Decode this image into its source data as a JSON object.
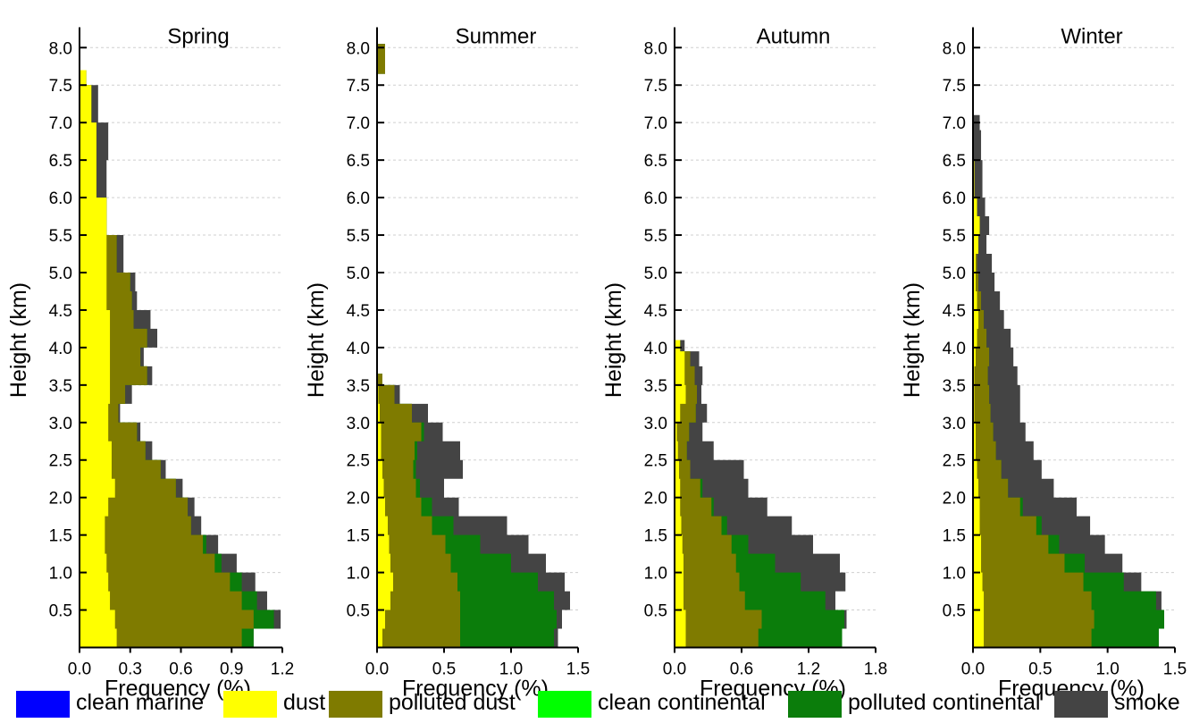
{
  "colors": {
    "clean_marine": "#0000ff",
    "dust": "#ffff00",
    "polluted_dust": "#7f7b00",
    "clean_continental": "#00ff00",
    "polluted_continental": "#0b7d0b",
    "smoke": "#444444",
    "grid": "#cfcfcf"
  },
  "legend": [
    {
      "key": "clean_marine",
      "label": "clean marine"
    },
    {
      "key": "dust",
      "label": "dust"
    },
    {
      "key": "polluted_dust",
      "label": "polluted dust"
    },
    {
      "key": "clean_continental",
      "label": "clean continental"
    },
    {
      "key": "polluted_continental",
      "label": "polluted continental"
    },
    {
      "key": "smoke",
      "label": "smoke"
    }
  ],
  "chart_data": [
    {
      "type": "area",
      "title": "Spring",
      "xlabel": "Frequency (%)",
      "ylabel": "Height (km)",
      "xlim": [
        0,
        1.2
      ],
      "ylim": [
        0,
        8.2
      ],
      "xticks": [
        "0.0",
        "0.3",
        "0.6",
        "0.9",
        "1.2"
      ],
      "yticks": [
        "0.5",
        "1.0",
        "1.5",
        "2.0",
        "2.5",
        "3.0",
        "3.5",
        "4.0",
        "4.5",
        "5.0",
        "5.5",
        "6.0",
        "6.5",
        "7.0",
        "7.5",
        "8.0"
      ],
      "grid": true,
      "stacking": "cumulative",
      "heights": [
        0.0,
        0.25,
        0.5,
        0.75,
        1.0,
        1.25,
        1.5,
        1.75,
        2.0,
        2.25,
        2.5,
        2.75,
        3.0,
        3.25,
        3.5,
        3.75,
        4.0,
        4.25,
        4.5,
        4.75,
        5.0,
        5.5,
        6.0,
        6.5,
        7.0,
        7.5
      ],
      "series": [
        {
          "key": "dust",
          "values": [
            0.22,
            0.21,
            0.18,
            0.17,
            0.16,
            0.15,
            0.15,
            0.17,
            0.21,
            0.19,
            0.19,
            0.17,
            0.17,
            0.18,
            0.18,
            0.18,
            0.18,
            0.18,
            0.16,
            0.16,
            0.16,
            0.16,
            0.1,
            0.1,
            0.07,
            0.04
          ]
        },
        {
          "key": "polluted_dust",
          "values": [
            0.74,
            0.82,
            0.78,
            0.72,
            0.64,
            0.58,
            0.51,
            0.47,
            0.36,
            0.29,
            0.2,
            0.17,
            0.06,
            0.09,
            0.22,
            0.18,
            0.22,
            0.14,
            0.15,
            0.14,
            0.06,
            0.0,
            0.0,
            0.0,
            0.0,
            0.0
          ]
        },
        {
          "key": "polluted_continental",
          "values": [
            0.07,
            0.12,
            0.09,
            0.07,
            0.04,
            0.02,
            0.0,
            0.0,
            0.0,
            0.0,
            0.0,
            0.0,
            0.0,
            0.0,
            0.0,
            0.0,
            0.0,
            0.0,
            0.0,
            0.0,
            0.0,
            0.0,
            0.0,
            0.0,
            0.0,
            0.0
          ]
        },
        {
          "key": "smoke",
          "values": [
            0.0,
            0.04,
            0.06,
            0.08,
            0.09,
            0.07,
            0.06,
            0.04,
            0.04,
            0.03,
            0.04,
            0.02,
            0.01,
            0.04,
            0.03,
            0.02,
            0.06,
            0.1,
            0.03,
            0.03,
            0.04,
            0.0,
            0.06,
            0.07,
            0.04,
            0.0
          ]
        }
      ]
    },
    {
      "type": "area",
      "title": "Summer",
      "xlabel": "Frequency (%)",
      "ylabel": "Height (km)",
      "xlim": [
        0,
        1.5
      ],
      "ylim": [
        0,
        8.2
      ],
      "xticks": [
        "0.0",
        "0.5",
        "1.0",
        "1.5"
      ],
      "yticks": [
        "0.5",
        "1.0",
        "1.5",
        "2.0",
        "2.5",
        "3.0",
        "3.5",
        "4.0",
        "4.5",
        "5.0",
        "5.5",
        "6.0",
        "6.5",
        "7.0",
        "7.5",
        "8.0"
      ],
      "grid": true,
      "stacking": "cumulative",
      "heights": [
        0.0,
        0.25,
        0.5,
        0.75,
        1.0,
        1.25,
        1.5,
        1.75,
        2.0,
        2.25,
        2.5,
        2.75,
        3.0,
        3.25,
        3.5,
        3.65,
        7.65,
        8.05
      ],
      "series": [
        {
          "key": "dust",
          "values": [
            0.04,
            0.06,
            0.1,
            0.12,
            0.1,
            0.09,
            0.08,
            0.06,
            0.05,
            0.04,
            0.03,
            0.03,
            0.02,
            0.01,
            0.0,
            0.0,
            0.0,
            0.0
          ]
        },
        {
          "key": "polluted_dust",
          "values": [
            0.58,
            0.56,
            0.52,
            0.48,
            0.45,
            0.42,
            0.33,
            0.27,
            0.24,
            0.23,
            0.25,
            0.3,
            0.24,
            0.12,
            0.04,
            0.0,
            0.06,
            0.0
          ]
        },
        {
          "key": "polluted_continental",
          "values": [
            0.7,
            0.72,
            0.7,
            0.6,
            0.45,
            0.26,
            0.16,
            0.08,
            0.03,
            0.02,
            0.02,
            0.02,
            0.0,
            0.0,
            0.0,
            0.0,
            0.0,
            0.0
          ]
        },
        {
          "key": "smoke",
          "values": [
            0.03,
            0.04,
            0.12,
            0.2,
            0.26,
            0.36,
            0.4,
            0.2,
            0.18,
            0.35,
            0.32,
            0.14,
            0.12,
            0.04,
            0.0,
            0.0,
            0.0,
            0.0
          ]
        }
      ]
    },
    {
      "type": "area",
      "title": "Autumn",
      "xlabel": "Frequency (%)",
      "ylabel": "Height (km)",
      "xlim": [
        0,
        1.8
      ],
      "ylim": [
        0,
        8.2
      ],
      "xticks": [
        "0.0",
        "0.6",
        "1.2",
        "1.8"
      ],
      "yticks": [
        "0.5",
        "1.0",
        "1.5",
        "2.0",
        "2.5",
        "3.0",
        "3.5",
        "4.0",
        "4.5",
        "5.0",
        "5.5",
        "6.0",
        "6.5",
        "7.0",
        "7.5",
        "8.0"
      ],
      "grid": true,
      "stacking": "cumulative",
      "heights": [
        0.0,
        0.25,
        0.5,
        0.75,
        1.0,
        1.25,
        1.5,
        1.75,
        2.0,
        2.25,
        2.5,
        2.75,
        3.0,
        3.25,
        3.5,
        3.75,
        3.95,
        4.1
      ],
      "series": [
        {
          "key": "dust",
          "values": [
            0.1,
            0.1,
            0.08,
            0.08,
            0.08,
            0.07,
            0.06,
            0.05,
            0.05,
            0.04,
            0.03,
            0.02,
            0.05,
            0.1,
            0.09,
            0.09,
            0.05,
            0.0
          ]
        },
        {
          "key": "polluted_dust",
          "values": [
            0.65,
            0.68,
            0.55,
            0.5,
            0.47,
            0.44,
            0.36,
            0.28,
            0.18,
            0.1,
            0.08,
            0.11,
            0.14,
            0.1,
            0.09,
            0.05,
            0.0,
            0.0
          ]
        },
        {
          "key": "polluted_continental",
          "values": [
            0.75,
            0.74,
            0.72,
            0.55,
            0.35,
            0.15,
            0.05,
            0.02,
            0.02,
            0.0,
            0.0,
            0.0,
            0.0,
            0.0,
            0.0,
            0.0,
            0.0,
            0.0
          ]
        },
        {
          "key": "smoke",
          "values": [
            0.0,
            0.02,
            0.09,
            0.4,
            0.58,
            0.58,
            0.58,
            0.48,
            0.41,
            0.48,
            0.24,
            0.12,
            0.1,
            0.04,
            0.07,
            0.08,
            0.04,
            0.0
          ]
        }
      ]
    },
    {
      "type": "area",
      "title": "Winter",
      "xlabel": "Frequency (%)",
      "ylabel": "Height (km)",
      "xlim": [
        0,
        1.5
      ],
      "ylim": [
        0,
        8.2
      ],
      "xticks": [
        "0.0",
        "0.5",
        "1.0",
        "1.5"
      ],
      "yticks": [
        "0.5",
        "1.0",
        "1.5",
        "2.0",
        "2.5",
        "3.0",
        "3.5",
        "4.0",
        "4.5",
        "5.0",
        "5.5",
        "6.0",
        "6.5",
        "7.0",
        "7.5",
        "8.0"
      ],
      "grid": true,
      "stacking": "cumulative",
      "heights": [
        0.0,
        0.25,
        0.5,
        0.75,
        1.0,
        1.25,
        1.5,
        1.75,
        2.0,
        2.25,
        2.5,
        2.75,
        3.0,
        3.25,
        3.5,
        3.75,
        4.0,
        4.25,
        4.5,
        4.75,
        5.0,
        5.25,
        5.5,
        5.75,
        6.0,
        6.5,
        6.9
      ],
      "series": [
        {
          "key": "dust",
          "values": [
            0.08,
            0.08,
            0.08,
            0.07,
            0.06,
            0.06,
            0.05,
            0.05,
            0.04,
            0.03,
            0.02,
            0.02,
            0.01,
            0.01,
            0.01,
            0.02,
            0.03,
            0.04,
            0.03,
            0.02,
            0.02,
            0.04,
            0.05,
            0.03,
            0.01,
            0.0,
            0.0
          ]
        },
        {
          "key": "polluted_dust",
          "values": [
            0.8,
            0.82,
            0.8,
            0.75,
            0.62,
            0.5,
            0.42,
            0.3,
            0.22,
            0.18,
            0.15,
            0.13,
            0.12,
            0.11,
            0.1,
            0.1,
            0.07,
            0.04,
            0.03,
            0.02,
            0.01,
            0.0,
            0.0,
            0.0,
            0.0,
            0.0,
            0.0
          ]
        },
        {
          "key": "polluted_continental",
          "values": [
            0.5,
            0.52,
            0.48,
            0.3,
            0.15,
            0.08,
            0.04,
            0.02,
            0.0,
            0.0,
            0.0,
            0.0,
            0.0,
            0.0,
            0.0,
            0.0,
            0.0,
            0.0,
            0.0,
            0.0,
            0.0,
            0.0,
            0.0,
            0.0,
            0.0,
            0.0,
            0.0
          ]
        },
        {
          "key": "smoke",
          "values": [
            0.0,
            0.0,
            0.04,
            0.13,
            0.28,
            0.34,
            0.36,
            0.4,
            0.34,
            0.3,
            0.28,
            0.24,
            0.22,
            0.23,
            0.22,
            0.18,
            0.18,
            0.15,
            0.14,
            0.12,
            0.11,
            0.06,
            0.07,
            0.06,
            0.06,
            0.06,
            0.05
          ]
        }
      ]
    }
  ]
}
